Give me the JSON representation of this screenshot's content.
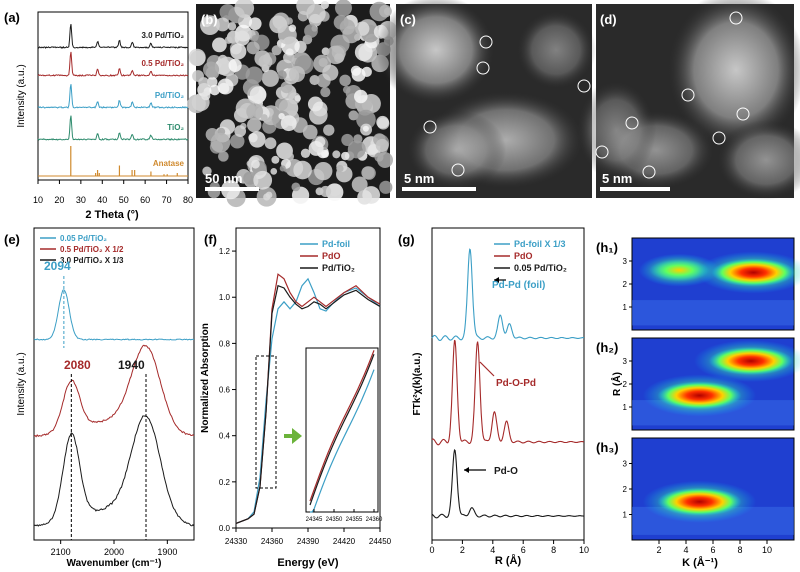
{
  "panels": {
    "a": {
      "label": "(a)"
    },
    "b": {
      "label": "(b)",
      "scale": "50 nm"
    },
    "c": {
      "label": "(c)",
      "scale": "5 nm"
    },
    "d": {
      "label": "(d)",
      "scale": "5 nm"
    },
    "e": {
      "label": "(e)"
    },
    "f": {
      "label": "(f)"
    },
    "g": {
      "label": "(g)"
    },
    "h1": {
      "label": "(h₁)"
    },
    "h2": {
      "label": "(h₂)"
    },
    "h3": {
      "label": "(h₃)"
    }
  },
  "colors": {
    "black": "#1a1a1a",
    "red": "#a52a2a",
    "blue": "#3c9fc6",
    "green": "#2e8b6d",
    "orange": "#d08a2e"
  },
  "chart_data": [
    {
      "id": "a",
      "type": "line",
      "xlabel": "2 Theta (°)",
      "ylabel": "Intensity (a.u.)",
      "xlim": [
        10,
        80
      ],
      "xticks": [
        10,
        20,
        30,
        40,
        50,
        60,
        70,
        80
      ],
      "series": [
        {
          "name": "3.0 Pd/TiO₂",
          "color": "#1a1a1a",
          "peaks": [
            [
              25.3,
              1.0
            ],
            [
              37.8,
              0.25
            ],
            [
              48.0,
              0.3
            ],
            [
              54.0,
              0.22
            ],
            [
              62.7,
              0.18
            ]
          ]
        },
        {
          "name": "0.5 Pd/TiO₂",
          "color": "#a52a2a",
          "peaks": [
            [
              25.3,
              1.0
            ],
            [
              37.8,
              0.25
            ],
            [
              48.0,
              0.3
            ],
            [
              54.0,
              0.22
            ],
            [
              62.7,
              0.18
            ]
          ]
        },
        {
          "name": "Pd/TiO₂",
          "color": "#3c9fc6",
          "peaks": [
            [
              25.3,
              1.0
            ],
            [
              37.8,
              0.25
            ],
            [
              48.0,
              0.3
            ],
            [
              54.0,
              0.22
            ],
            [
              62.7,
              0.18
            ]
          ]
        },
        {
          "name": "TiO₂",
          "color": "#2e8b6d",
          "peaks": [
            [
              25.3,
              1.0
            ],
            [
              37.8,
              0.25
            ],
            [
              48.0,
              0.3
            ],
            [
              54.0,
              0.22
            ],
            [
              62.7,
              0.18
            ]
          ]
        }
      ],
      "reference": {
        "name": "Anatase",
        "color": "#d08a2e",
        "sticks": [
          [
            25.3,
            1.0
          ],
          [
            36.9,
            0.1
          ],
          [
            37.8,
            0.2
          ],
          [
            38.6,
            0.1
          ],
          [
            48.0,
            0.35
          ],
          [
            53.9,
            0.2
          ],
          [
            55.1,
            0.2
          ],
          [
            62.7,
            0.15
          ],
          [
            68.8,
            0.06
          ],
          [
            70.3,
            0.06
          ],
          [
            75.0,
            0.1
          ]
        ]
      }
    },
    {
      "id": "e",
      "type": "line",
      "xlabel": "Wavenumber (cm⁻¹)",
      "ylabel": "Intensity (a.u.)",
      "xlim": [
        2150,
        1850
      ],
      "xticks": [
        2100,
        2000,
        1900
      ],
      "series": [
        {
          "name": "0.05 Pd/TiO₂",
          "color": "#3c9fc6",
          "peaks": [
            [
              2094,
              1.0
            ]
          ]
        },
        {
          "name": "0.5 Pd/TiO₂ X 1/2",
          "color": "#a52a2a",
          "peaks": [
            [
              2080,
              0.55
            ],
            [
              1940,
              0.9
            ]
          ]
        },
        {
          "name": "3.0 Pd/TiO₂ X 1/3",
          "color": "#1a1a1a",
          "peaks": [
            [
              2080,
              0.85
            ],
            [
              1940,
              1.0
            ]
          ]
        }
      ],
      "annotations": [
        "2094",
        "2080",
        "1940"
      ]
    },
    {
      "id": "f",
      "type": "line",
      "xlabel": "Energy (eV)",
      "ylabel": "Normalized Absorption",
      "xlim": [
        24330,
        24450
      ],
      "ylim": [
        0.0,
        1.3
      ],
      "xticks": [
        24330,
        24360,
        24390,
        24420,
        24450
      ],
      "yticks": [
        0.0,
        0.2,
        0.4,
        0.6,
        0.8,
        1.0,
        1.2
      ],
      "series": [
        {
          "name": "Pd-foil",
          "color": "#3c9fc6",
          "points": [
            [
              24330,
              0.02
            ],
            [
              24340,
              0.04
            ],
            [
              24345,
              0.07
            ],
            [
              24350,
              0.22
            ],
            [
              24355,
              0.55
            ],
            [
              24360,
              0.82
            ],
            [
              24365,
              0.95
            ],
            [
              24370,
              0.98
            ],
            [
              24375,
              0.95
            ],
            [
              24380,
              0.98
            ],
            [
              24385,
              1.05
            ],
            [
              24390,
              1.08
            ],
            [
              24395,
              1.02
            ],
            [
              24400,
              0.95
            ],
            [
              24405,
              0.94
            ],
            [
              24410,
              0.97
            ],
            [
              24420,
              1.02
            ],
            [
              24430,
              1.04
            ],
            [
              24440,
              1.0
            ],
            [
              24450,
              0.96
            ]
          ]
        },
        {
          "name": "PdO",
          "color": "#a52a2a",
          "points": [
            [
              24330,
              0.02
            ],
            [
              24340,
              0.04
            ],
            [
              24345,
              0.06
            ],
            [
              24350,
              0.18
            ],
            [
              24355,
              0.5
            ],
            [
              24360,
              0.95
            ],
            [
              24365,
              1.1
            ],
            [
              24370,
              1.08
            ],
            [
              24375,
              1.02
            ],
            [
              24380,
              0.98
            ],
            [
              24385,
              0.96
            ],
            [
              24390,
              0.98
            ],
            [
              24395,
              1.0
            ],
            [
              24400,
              0.98
            ],
            [
              24405,
              0.96
            ],
            [
              24410,
              0.98
            ],
            [
              24420,
              1.02
            ],
            [
              24430,
              1.05
            ],
            [
              24440,
              1.0
            ],
            [
              24450,
              0.97
            ]
          ]
        },
        {
          "name": "Pd/TiO₂",
          "color": "#1a1a1a",
          "points": [
            [
              24330,
              0.02
            ],
            [
              24340,
              0.04
            ],
            [
              24345,
              0.06
            ],
            [
              24350,
              0.18
            ],
            [
              24355,
              0.5
            ],
            [
              24360,
              0.93
            ],
            [
              24365,
              1.05
            ],
            [
              24370,
              1.04
            ],
            [
              24375,
              1.0
            ],
            [
              24380,
              0.97
            ],
            [
              24385,
              0.95
            ],
            [
              24390,
              0.96
            ],
            [
              24395,
              0.98
            ],
            [
              24400,
              0.97
            ],
            [
              24405,
              0.95
            ],
            [
              24410,
              0.97
            ],
            [
              24420,
              1.01
            ],
            [
              24430,
              1.03
            ],
            [
              24440,
              0.99
            ],
            [
              24450,
              0.96
            ]
          ]
        }
      ],
      "inset": {
        "xticks": [
          24345,
          24350,
          24355,
          24360
        ],
        "xlim": [
          24343,
          24361
        ]
      }
    },
    {
      "id": "g",
      "type": "line",
      "xlabel": "R (Å)",
      "ylabel": "FTk²χ(k)(a.u.)",
      "xlim": [
        0,
        10
      ],
      "xticks": [
        0,
        2,
        4,
        6,
        8,
        10
      ],
      "series": [
        {
          "name": "Pd-foil X 1/3",
          "color": "#3c9fc6",
          "peaks": [
            [
              2.5,
              1.0
            ],
            [
              4.5,
              0.25
            ],
            [
              5.1,
              0.15
            ]
          ]
        },
        {
          "name": "PdO",
          "color": "#a52a2a",
          "peaks": [
            [
              1.5,
              1.0
            ],
            [
              3.0,
              1.0
            ],
            [
              4.1,
              0.3
            ],
            [
              4.9,
              0.2
            ]
          ]
        },
        {
          "name": "0.05 Pd/TiO₂",
          "color": "#1a1a1a",
          "peaks": [
            [
              1.5,
              1.0
            ],
            [
              2.6,
              0.12
            ]
          ]
        }
      ],
      "annotations": [
        "Pd-Pd (foil)",
        "Pd-O-Pd",
        "Pd-O"
      ]
    },
    {
      "id": "h",
      "type": "heatmap",
      "xlabel": "K (Å⁻¹)",
      "ylabel": "R (Å)",
      "xlim": [
        0,
        12
      ],
      "ylim": [
        0,
        4
      ],
      "xticks": [
        2,
        4,
        6,
        8,
        10
      ],
      "yticks": [
        1,
        2,
        3
      ],
      "maps": [
        {
          "label": "(h₁)",
          "blobs": [
            [
              3.5,
              2.6,
              0.5
            ],
            [
              9.0,
              2.5,
              1.0
            ]
          ]
        },
        {
          "label": "(h₂)",
          "blobs": [
            [
              5.0,
              1.5,
              0.9
            ],
            [
              8.8,
              3.0,
              1.0
            ]
          ]
        },
        {
          "label": "(h₃)",
          "blobs": [
            [
              5.0,
              1.5,
              1.0
            ]
          ]
        }
      ]
    }
  ]
}
